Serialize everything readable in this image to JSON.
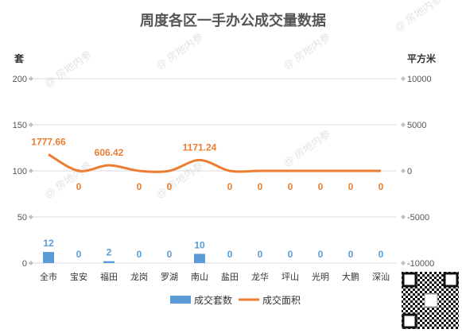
{
  "chart_data": {
    "type": "bar+line",
    "title": "周度各区一手办公成交量数据",
    "y_left_label": "套",
    "y_right_label": "平方米",
    "categories": [
      "全市",
      "宝安",
      "福田",
      "龙岗",
      "罗湖",
      "南山",
      "盐田",
      "龙华",
      "坪山",
      "光明",
      "大鹏",
      "深汕"
    ],
    "series": [
      {
        "name": "成交套数",
        "type": "bar",
        "axis": "left",
        "values": [
          12,
          0,
          2,
          0,
          0,
          10,
          0,
          0,
          0,
          0,
          0,
          0
        ],
        "labels": [
          "12",
          "0",
          "2",
          "0",
          "0",
          "10",
          "0",
          "0",
          "0",
          "0",
          "0",
          "0"
        ]
      },
      {
        "name": "成交面积",
        "type": "line",
        "axis": "right",
        "values": [
          1777.66,
          0,
          606.42,
          0,
          0,
          1171.24,
          0,
          0,
          0,
          0,
          0,
          0
        ],
        "labels": [
          "1777.66",
          "0",
          "606.42",
          "0",
          "0",
          "1171.24",
          "0",
          "0",
          "0",
          "0",
          "0",
          "0"
        ]
      }
    ],
    "y_left_ticks": [
      "200",
      "150",
      "100",
      "50",
      "0"
    ],
    "y_left_range": [
      0,
      200
    ],
    "y_right_ticks": [
      "10000",
      "5000",
      "0",
      "-5000",
      "-10000"
    ],
    "y_right_range": [
      -10000,
      10000
    ],
    "grid": true,
    "legend": "bottom",
    "colors": {
      "bar": "#5b9bd5",
      "line": "#ed7d31",
      "grid": "#d9d9d9"
    }
  },
  "watermark": "房地内参"
}
